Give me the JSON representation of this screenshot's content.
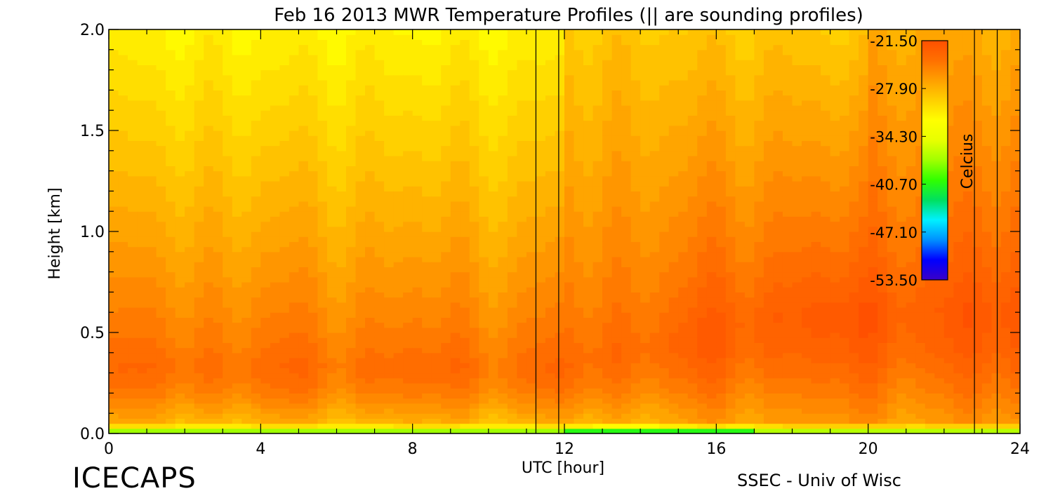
{
  "chart_data": {
    "type": "heatmap",
    "title": "Feb 16 2013 MWR Temperature Profiles (|| are sounding profiles)",
    "xlabel": "UTC [hour]",
    "ylabel": "Height [km]",
    "xlim": [
      0,
      24
    ],
    "ylim": [
      0,
      2.0
    ],
    "x_ticks": [
      "0",
      "4",
      "8",
      "12",
      "16",
      "20",
      "24"
    ],
    "y_ticks": [
      "0.0",
      "0.5",
      "1.0",
      "1.5",
      "2.0"
    ],
    "colorbar": {
      "label": "Celcius",
      "min": -53.5,
      "max": -21.5,
      "ticks": [
        "-21.50",
        "-27.90",
        "-34.30",
        "-40.70",
        "-47.10",
        "-53.50"
      ],
      "colormap": [
        "#3a00c8",
        "#0000ff",
        "#0090ff",
        "#00f0ff",
        "#00e060",
        "#30ff00",
        "#a0ff00",
        "#e8ff00",
        "#ffff00",
        "#ffd000",
        "#ffa000",
        "#ff7000",
        "#ff5000"
      ]
    },
    "sounding_times_utc": [
      11.25,
      11.85,
      22.8,
      23.4
    ],
    "profile_model": {
      "surface_temp_c": -47,
      "inversion_peak_height_km": 0.35,
      "peak_temp_c": -23.6,
      "temp_at_top_c": -31.5,
      "late_day_peak_height_km": 0.62,
      "late_day_peak_temp_c": -22.5
    }
  },
  "footer": {
    "brand": "ICECAPS",
    "credit": "SSEC - Univ of Wisc"
  }
}
